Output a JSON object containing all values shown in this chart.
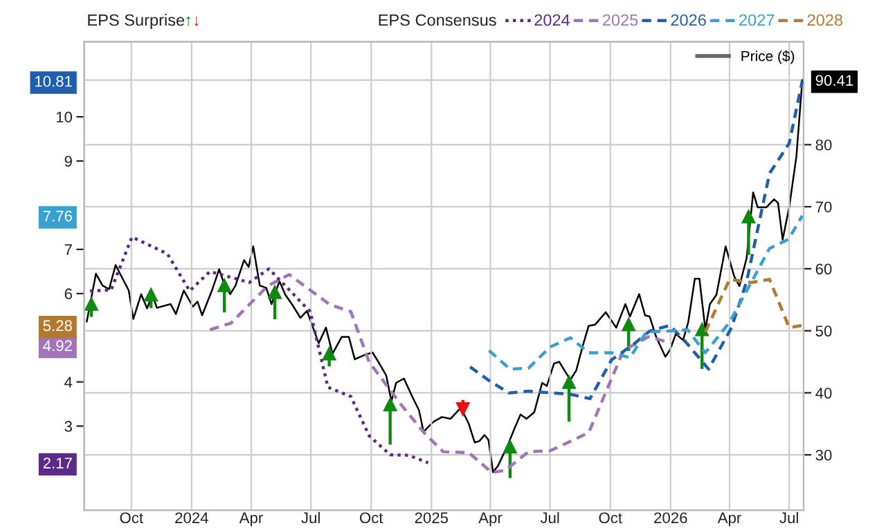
{
  "chart_data": {
    "type": "line",
    "annotations": [
      "EPS Surprise",
      "EPS Consensus"
    ],
    "xlim": [
      "2023-07-21",
      "2026-07-23"
    ],
    "xticks": [
      {
        "value": "2023-10-01",
        "label": "Oct"
      },
      {
        "value": "2024-01-01",
        "label": "2024"
      },
      {
        "value": "2024-04-01",
        "label": "Apr"
      },
      {
        "value": "2024-07-01",
        "label": "Jul"
      },
      {
        "value": "2024-10-01",
        "label": "Oct"
      },
      {
        "value": "2025-01-01",
        "label": "2025"
      },
      {
        "value": "2025-04-01",
        "label": "Apr"
      },
      {
        "value": "2025-07-01",
        "label": "Jul"
      },
      {
        "value": "2025-10-01",
        "label": "Oct"
      },
      {
        "value": "2026-01-01",
        "label": "2026"
      },
      {
        "value": "2026-04-01",
        "label": "Apr"
      },
      {
        "value": "2026-07-01",
        "label": "Jul"
      }
    ],
    "ylim": [
      1.1,
      11.7
    ],
    "yticks": [
      2.17,
      3,
      4,
      4.92,
      5.28,
      6,
      7,
      7.76,
      9,
      10,
      10.81
    ],
    "y2lim": [
      21.1,
      96.6
    ],
    "y2ticks": [
      30,
      40,
      50,
      60,
      70,
      80,
      90.41
    ],
    "grid": true,
    "legend": "top",
    "series": [
      {
        "name": "↑",
        "type": "scatter",
        "axis": "y2",
        "marker": "triangle",
        "color": "#108a10",
        "x": [
          "2023-08-01",
          "2023-10-31",
          "2024-02-20",
          "2024-05-07",
          "2024-07-29",
          "2024-10-30",
          "2025-05-01",
          "2025-07-30",
          "2025-10-29",
          "2026-02-18",
          "2026-04-30"
        ],
        "values": [
          54.3,
          55.8,
          57.3,
          56.2,
          46.3,
          38.1,
          31.3,
          41.7,
          51.0,
          50.2,
          68.4
        ],
        "errors": [
          [
            52.5,
            54.3
          ],
          [
            53.9,
            55.8
          ],
          [
            53.2,
            57.3
          ],
          [
            52.1,
            56.2
          ],
          [
            44.5,
            46.3
          ],
          [
            31.9,
            38.1
          ],
          [
            26.5,
            31.3
          ],
          [
            35.6,
            41.7
          ],
          [
            47.0,
            51.0
          ],
          [
            44.1,
            50.2
          ],
          [
            62.5,
            68.4
          ]
        ]
      },
      {
        "name": "↓",
        "type": "scatter",
        "axis": "y2",
        "marker": "triangle",
        "color": "#e81010",
        "x": [
          "2025-02-18"
        ],
        "values": [
          37.4
        ],
        "errors": [
          [
            37.4,
            38.6
          ]
        ]
      },
      {
        "name": "2024",
        "line_style": "dotted",
        "color": "#5b2a86",
        "x": [
          "2023-07-30",
          "2023-08-31",
          "2023-10-02",
          "2023-11-25",
          "2023-12-29",
          "2024-01-29",
          "2024-03-29",
          "2024-04-28",
          "2024-06-30",
          "2024-07-27",
          "2024-08-31",
          "2024-09-28",
          "2024-10-30",
          "2024-11-27",
          "2024-12-27"
        ],
        "values": [
          6.06,
          6.08,
          7.28,
          6.9,
          6.06,
          6.5,
          6.25,
          6.56,
          5.59,
          3.88,
          3.67,
          2.78,
          2.35,
          2.34,
          2.17
        ]
      },
      {
        "name": "2025",
        "line_style": "dashed",
        "color": "#a274b8",
        "x": [
          "2024-01-29",
          "2024-03-01",
          "2024-04-26",
          "2024-05-29",
          "2024-07-30",
          "2024-08-31",
          "2024-09-28",
          "2024-11-17",
          "2024-12-22",
          "2025-01-19",
          "2025-02-27",
          "2025-04-03",
          "2025-04-24",
          "2025-05-29",
          "2025-07-01",
          "2025-08-29",
          "2025-10-03",
          "2025-10-21",
          "2025-11-28",
          "2025-12-23"
        ],
        "values": [
          5.18,
          5.33,
          6.17,
          6.43,
          5.75,
          5.59,
          4.45,
          3.46,
          2.83,
          2.42,
          2.4,
          1.95,
          2.0,
          2.42,
          2.44,
          2.85,
          4.08,
          4.71,
          5.02,
          4.92
        ]
      },
      {
        "name": "2026",
        "line_style": "dashed",
        "color": "#1f5fad",
        "x": [
          "2025-03-01",
          "2025-03-30",
          "2025-04-29",
          "2025-05-29",
          "2025-08-01",
          "2025-08-31",
          "2025-10-03",
          "2025-11-07",
          "2025-11-30",
          "2025-12-31",
          "2026-01-26",
          "2026-02-28",
          "2026-04-04",
          "2026-04-27",
          "2026-06-01",
          "2026-07-01",
          "2026-07-21"
        ],
        "values": [
          4.34,
          4.03,
          3.75,
          3.79,
          3.72,
          3.62,
          4.5,
          4.87,
          5.15,
          5.28,
          4.87,
          4.29,
          5.23,
          6.27,
          8.72,
          9.4,
          10.81
        ]
      },
      {
        "name": "2027",
        "line_style": "dashed",
        "color": "#3aa0d2",
        "x": [
          "2025-03-30",
          "2025-05-01",
          "2025-05-29",
          "2025-07-01",
          "2025-08-01",
          "2025-08-29",
          "2025-10-03",
          "2025-10-31",
          "2025-11-25",
          "2025-12-27",
          "2026-01-27",
          "2026-02-23",
          "2026-04-01",
          "2026-05-04",
          "2026-06-01",
          "2026-06-30",
          "2026-07-21"
        ],
        "values": [
          4.71,
          4.29,
          4.31,
          4.79,
          5.0,
          4.66,
          4.66,
          4.55,
          5.13,
          5.15,
          5.18,
          4.66,
          5.35,
          6.25,
          7.02,
          7.23,
          7.76
        ]
      },
      {
        "name": "2028",
        "line_style": "dashed",
        "color": "#b27a30",
        "x": [
          "2026-02-23",
          "2026-04-01",
          "2026-05-04",
          "2026-06-01",
          "2026-07-01",
          "2026-07-21"
        ],
        "values": [
          5.13,
          6.32,
          6.25,
          6.32,
          5.23,
          5.28
        ]
      },
      {
        "name": "Price ($)",
        "axis": "y2",
        "line_style": "solid",
        "color": "#000000",
        "x": [
          "2023-07-25",
          "2023-08-08",
          "2023-08-18",
          "2023-08-28",
          "2023-09-07",
          "2023-09-27",
          "2023-10-04",
          "2023-10-16",
          "2023-10-25",
          "2023-11-02",
          "2023-11-09",
          "2023-11-30",
          "2023-12-08",
          "2023-12-20",
          "2024-01-03",
          "2024-01-10",
          "2024-01-17",
          "2024-02-01",
          "2024-02-12",
          "2024-02-20",
          "2024-02-29",
          "2024-03-08",
          "2024-03-21",
          "2024-03-28",
          "2024-04-04",
          "2024-04-14",
          "2024-04-24",
          "2024-05-02",
          "2024-05-14",
          "2024-05-23",
          "2024-06-02",
          "2024-06-15",
          "2024-06-25",
          "2024-07-13",
          "2024-07-24",
          "2024-08-03",
          "2024-08-17",
          "2024-08-28",
          "2024-09-06",
          "2024-09-21",
          "2024-10-03",
          "2024-10-12",
          "2024-10-24",
          "2024-11-01",
          "2024-11-08",
          "2024-11-20",
          "2024-12-04",
          "2024-12-13",
          "2024-12-20",
          "2024-12-29",
          "2025-01-05",
          "2025-01-12",
          "2025-01-17",
          "2025-01-30",
          "2025-02-15",
          "2025-02-27",
          "2025-03-08",
          "2025-03-15",
          "2025-03-23",
          "2025-03-29",
          "2025-04-05",
          "2025-04-13",
          "2025-04-28",
          "2025-05-08",
          "2025-05-17",
          "2025-05-26",
          "2025-06-07",
          "2025-06-19",
          "2025-06-26",
          "2025-07-07",
          "2025-07-15",
          "2025-08-01",
          "2025-08-10",
          "2025-08-20",
          "2025-08-29",
          "2025-09-08",
          "2025-09-24",
          "2025-10-10",
          "2025-10-24",
          "2025-10-31",
          "2025-11-14",
          "2025-11-23",
          "2025-11-30",
          "2025-12-10",
          "2025-12-24",
          "2025-12-31",
          "2026-01-09",
          "2026-01-20",
          "2026-01-28",
          "2026-02-07",
          "2026-02-14",
          "2026-02-23",
          "2026-03-02",
          "2026-03-12",
          "2026-03-26",
          "2026-04-08",
          "2026-04-16",
          "2026-04-27",
          "2026-05-07",
          "2026-05-14",
          "2026-05-27",
          "2026-06-08",
          "2026-06-14",
          "2026-06-21",
          "2026-07-01",
          "2026-07-12",
          "2026-07-21"
        ],
        "values": [
          51.5,
          59.2,
          57.3,
          56.7,
          60.6,
          56.5,
          51.9,
          55.9,
          53.6,
          55.8,
          53.7,
          54.3,
          52.7,
          56.5,
          53.9,
          54.7,
          52.5,
          56.5,
          59.9,
          57.4,
          55.9,
          57.3,
          61.4,
          60.3,
          63.6,
          57.3,
          56.9,
          54.3,
          58.0,
          55.8,
          54.3,
          52.1,
          53.2,
          48.0,
          50.5,
          46.3,
          49.0,
          49.0,
          45.4,
          46.1,
          46.5,
          45.0,
          42.8,
          38.6,
          41.6,
          42.3,
          39.1,
          37.2,
          33.7,
          34.7,
          35.4,
          35.8,
          36.1,
          35.8,
          37.6,
          35.0,
          32.0,
          32.2,
          33.2,
          32.4,
          27.2,
          28.3,
          31.7,
          34.3,
          36.5,
          35.8,
          36.9,
          41.6,
          41.1,
          44.7,
          45.0,
          42.1,
          43.6,
          47.6,
          50.8,
          51.0,
          53.0,
          50.5,
          54.3,
          52.3,
          55.9,
          52.5,
          52.3,
          49.0,
          45.8,
          46.9,
          49.5,
          48.5,
          51.4,
          58.4,
          58.4,
          50.2,
          54.3,
          55.8,
          63.6,
          58.8,
          57.2,
          61.7,
          72.3,
          69.9,
          69.9,
          71.2,
          70.6,
          64.7,
          69.9,
          78.1,
          90.41
        ]
      }
    ]
  }
}
